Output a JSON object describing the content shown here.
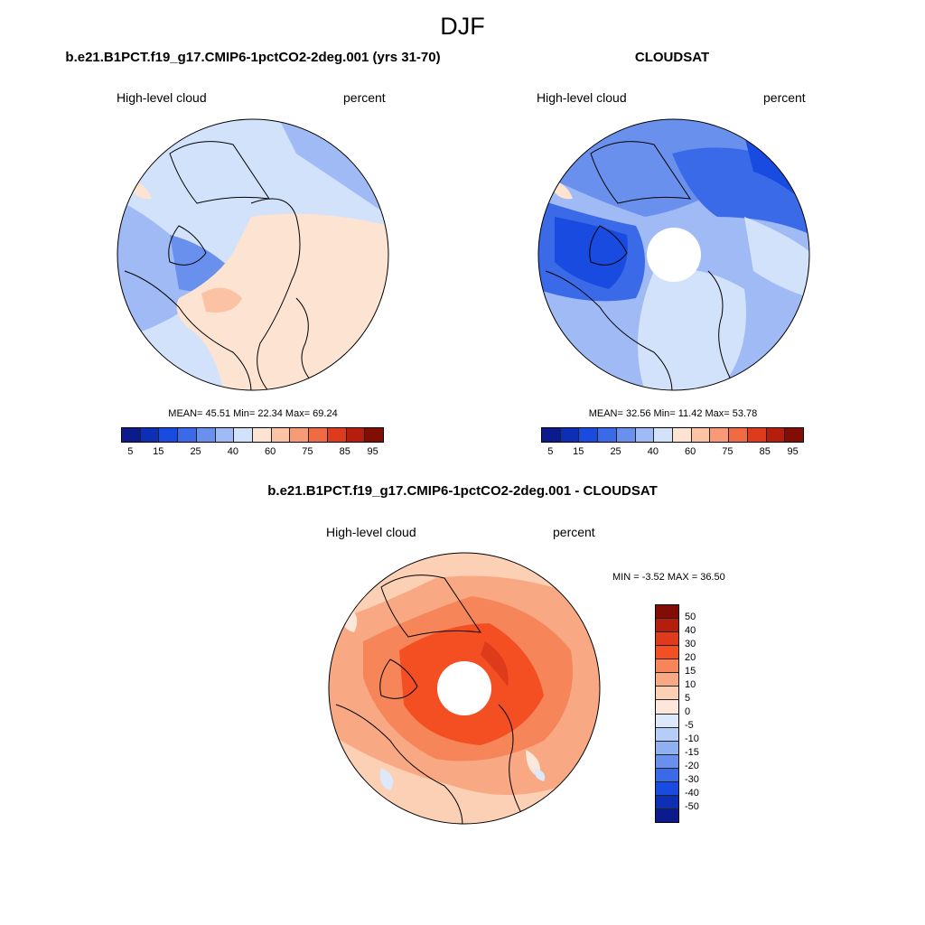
{
  "figure": {
    "title": "DJF"
  },
  "panels": [
    {
      "title": "b.e21.B1PCT.f19_g17.CMIP6-1pctCO2-2deg.001 (yrs 31-70)",
      "left_label": "High-level cloud",
      "right_label": "percent",
      "stats": "MEAN=  45.51  Min=  22.34  Max=  69.24"
    },
    {
      "title": "CLOUDSAT",
      "left_label": "High-level cloud",
      "right_label": "percent",
      "stats": "MEAN=  32.56  Min=  11.42  Max=  53.78"
    },
    {
      "title": "b.e21.B1PCT.f19_g17.CMIP6-1pctCO2-2deg.001 - CLOUDSAT",
      "left_label": "High-level cloud",
      "right_label": "percent",
      "stats": "MIN =  -3.52 MAX =  36.50"
    }
  ],
  "colorbar_main": {
    "ticks": [
      "5",
      "15",
      "25",
      "40",
      "60",
      "75",
      "85",
      "95"
    ],
    "colors": [
      "#0b1a8c",
      "#0d2fb5",
      "#1a4be0",
      "#3a6ae8",
      "#6a90ee",
      "#9fbaf4",
      "#d2e2fb",
      "#fde3d2",
      "#fcc2a4",
      "#f89a76",
      "#f06a43",
      "#de3a1c",
      "#b51e0c",
      "#820d05"
    ]
  },
  "colorbar_diff": {
    "labels": [
      "50",
      "40",
      "30",
      "20",
      "15",
      "10",
      "5",
      "0",
      "-5",
      "-10",
      "-15",
      "-20",
      "-30",
      "-40",
      "-50"
    ],
    "colors": [
      "#820d05",
      "#b51e0c",
      "#de3a1c",
      "#f44f22",
      "#f68659",
      "#f8a983",
      "#fbd0b5",
      "#fde7da",
      "#dde8fb",
      "#b6cdf7",
      "#8fb1f1",
      "#6a90ee",
      "#3a6ae8",
      "#1a4be0",
      "#0d2fb5",
      "#0b1a8c"
    ]
  }
}
